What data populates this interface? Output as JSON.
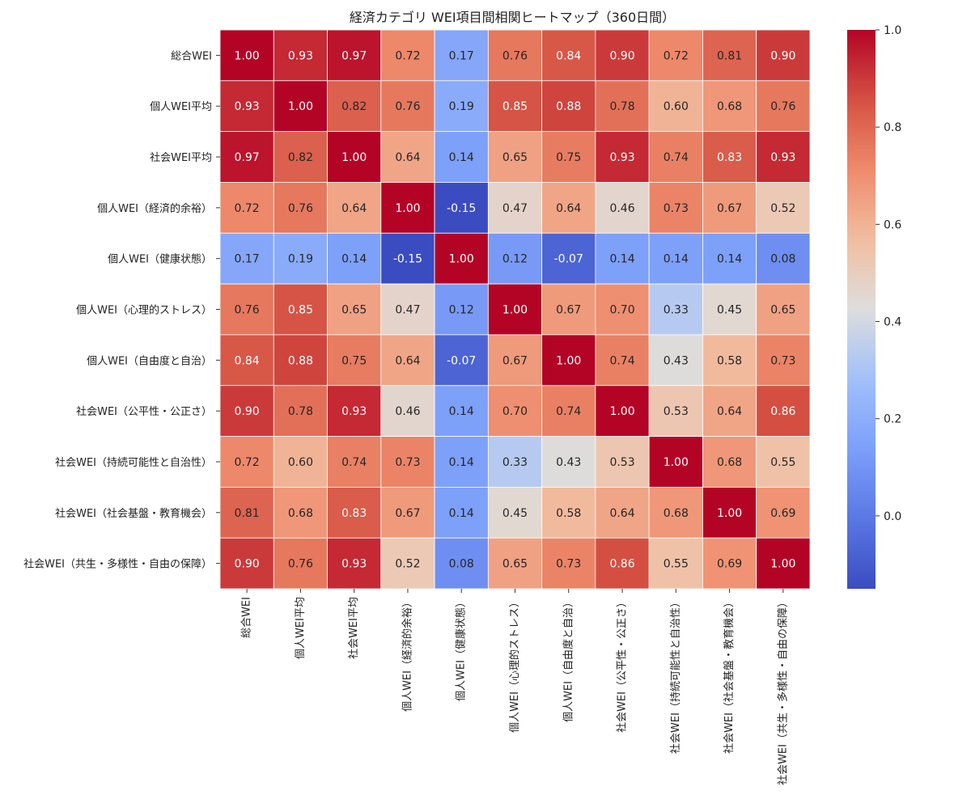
{
  "chart_data": {
    "type": "heatmap",
    "title": "経済カテゴリ WEI項目間相関ヒートマップ（360日間）",
    "labels": [
      "総合WEI",
      "個人WEI平均",
      "社会WEI平均",
      "個人WEI（経済的余裕）",
      "個人WEI（健康状態）",
      "個人WEI（心理的ストレス）",
      "個人WEI（自由度と自治）",
      "社会WEI（公平性・公正さ）",
      "社会WEI（持続可能性と自治性）",
      "社会WEI（社会基盤・教育機会）",
      "社会WEI（共生・多様性・自由の保障）"
    ],
    "matrix": [
      [
        1.0,
        0.93,
        0.97,
        0.72,
        0.17,
        0.76,
        0.84,
        0.9,
        0.72,
        0.81,
        0.9
      ],
      [
        0.93,
        1.0,
        0.82,
        0.76,
        0.19,
        0.85,
        0.88,
        0.78,
        0.6,
        0.68,
        0.76
      ],
      [
        0.97,
        0.82,
        1.0,
        0.64,
        0.14,
        0.65,
        0.75,
        0.93,
        0.74,
        0.83,
        0.93
      ],
      [
        0.72,
        0.76,
        0.64,
        1.0,
        -0.15,
        0.47,
        0.64,
        0.46,
        0.73,
        0.67,
        0.52
      ],
      [
        0.17,
        0.19,
        0.14,
        -0.15,
        1.0,
        0.12,
        -0.07,
        0.14,
        0.14,
        0.14,
        0.08
      ],
      [
        0.76,
        0.85,
        0.65,
        0.47,
        0.12,
        1.0,
        0.67,
        0.7,
        0.33,
        0.45,
        0.65
      ],
      [
        0.84,
        0.88,
        0.75,
        0.64,
        -0.07,
        0.67,
        1.0,
        0.74,
        0.43,
        0.58,
        0.73
      ],
      [
        0.9,
        0.78,
        0.93,
        0.46,
        0.14,
        0.7,
        0.74,
        1.0,
        0.53,
        0.64,
        0.86
      ],
      [
        0.72,
        0.6,
        0.74,
        0.73,
        0.14,
        0.33,
        0.43,
        0.53,
        1.0,
        0.68,
        0.55
      ],
      [
        0.81,
        0.68,
        0.83,
        0.67,
        0.14,
        0.45,
        0.58,
        0.64,
        0.68,
        1.0,
        0.69
      ],
      [
        0.9,
        0.76,
        0.93,
        0.52,
        0.08,
        0.65,
        0.73,
        0.86,
        0.55,
        0.69,
        1.0
      ]
    ],
    "colormap": "coolwarm",
    "color_range": [
      -0.15,
      1.0
    ],
    "colorbar_ticks": [
      "0.0",
      "0.2",
      "0.4",
      "0.6",
      "0.8",
      "1.0"
    ],
    "colorbar_tick_values": [
      0.0,
      0.2,
      0.4,
      0.6,
      0.8,
      1.0
    ],
    "value_format": "2 decimals",
    "grid": false,
    "legend": "colorbar right"
  }
}
